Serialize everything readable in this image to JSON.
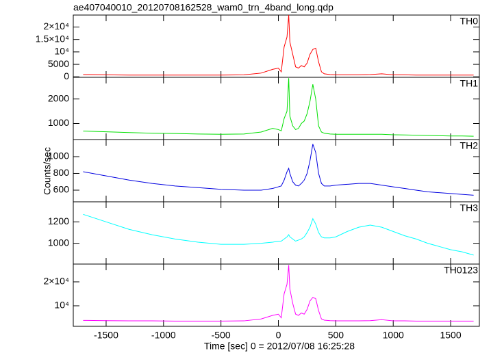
{
  "chart_data": [
    {
      "type": "line",
      "title": "ae407040010_20120708162528_wam0_trn_4band_long.qdp",
      "x": [
        -1700,
        -1500,
        -1300,
        -1100,
        -900,
        -700,
        -500,
        -300,
        -150,
        -50,
        0,
        25,
        50,
        75,
        90,
        100,
        125,
        150,
        175,
        200,
        225,
        250,
        275,
        300,
        325,
        350,
        375,
        400,
        450,
        500,
        600,
        700,
        800,
        900,
        1000,
        1100,
        1200,
        1300,
        1400,
        1500,
        1600,
        1700
      ],
      "series": [
        {
          "name": "TH0",
          "color": "#ff0000",
          "values": [
            900,
            800,
            700,
            700,
            700,
            700,
            700,
            800,
            1500,
            3000,
            3500,
            2000,
            12000,
            16000,
            24800,
            14000,
            9000,
            4000,
            3500,
            4500,
            4000,
            5500,
            9000,
            11000,
            11500,
            6000,
            2000,
            1200,
            900,
            800,
            800,
            800,
            900,
            1200,
            800,
            800,
            700,
            700,
            700,
            700,
            700,
            700
          ]
        }
      ],
      "xlim": [
        -1786,
        1750
      ],
      "ylim": [
        -200,
        24800
      ],
      "yticks": [
        0,
        5000,
        {
          "value": 10000,
          "label": "10⁴"
        },
        {
          "value": 15000,
          "label": "1.5×10⁴"
        },
        {
          "value": 20000,
          "label": "2×10⁴"
        }
      ]
    },
    {
      "type": "line",
      "x": [
        -1700,
        -1500,
        -1300,
        -1100,
        -900,
        -700,
        -500,
        -300,
        -150,
        -50,
        0,
        25,
        50,
        75,
        90,
        100,
        125,
        150,
        175,
        200,
        225,
        250,
        275,
        300,
        325,
        350,
        375,
        400,
        450,
        500,
        600,
        700,
        800,
        900,
        1000,
        1100,
        1200,
        1300,
        1400,
        1500,
        1600,
        1700
      ],
      "series": [
        {
          "name": "TH1",
          "color": "#00e000",
          "values": [
            690,
            660,
            630,
            600,
            590,
            570,
            560,
            570,
            650,
            800,
            750,
            700,
            1200,
            1500,
            2850,
            1300,
            900,
            750,
            800,
            1000,
            1100,
            1400,
            1900,
            2600,
            2000,
            900,
            650,
            600,
            570,
            560,
            560,
            560,
            560,
            560,
            540,
            530,
            520,
            510,
            500,
            490,
            490,
            480
          ]
        }
      ],
      "xlim": [
        -1786,
        1750
      ],
      "ylim": [
        343,
        2886
      ],
      "yticks": [
        1000,
        2000
      ]
    },
    {
      "type": "line",
      "ylabel": "Counts/sec",
      "x": [
        -1700,
        -1500,
        -1300,
        -1100,
        -900,
        -700,
        -500,
        -300,
        -150,
        -50,
        0,
        25,
        50,
        75,
        90,
        100,
        125,
        150,
        175,
        200,
        225,
        250,
        275,
        300,
        325,
        350,
        375,
        400,
        450,
        500,
        600,
        700,
        800,
        900,
        1000,
        1100,
        1200,
        1300,
        1400,
        1500,
        1600,
        1700
      ],
      "series": [
        {
          "name": "TH2",
          "color": "#0000e0",
          "values": [
            820,
            770,
            720,
            680,
            650,
            630,
            610,
            600,
            600,
            620,
            640,
            650,
            720,
            820,
            860,
            800,
            700,
            660,
            650,
            680,
            720,
            800,
            950,
            1150,
            1050,
            800,
            680,
            650,
            650,
            660,
            670,
            680,
            680,
            660,
            640,
            620,
            600,
            580,
            570,
            560,
            550,
            540
          ]
        }
      ],
      "xlim": [
        -1786,
        1750
      ],
      "ylim": [
        461,
        1204
      ],
      "yticks": [
        600,
        800,
        1000
      ]
    },
    {
      "type": "line",
      "x": [
        -1700,
        -1500,
        -1300,
        -1100,
        -900,
        -700,
        -500,
        -300,
        -150,
        -50,
        0,
        25,
        50,
        75,
        90,
        100,
        125,
        150,
        175,
        200,
        225,
        250,
        275,
        300,
        325,
        350,
        375,
        400,
        450,
        500,
        600,
        700,
        800,
        900,
        1000,
        1100,
        1200,
        1300,
        1400,
        1500,
        1600,
        1700
      ],
      "series": [
        {
          "name": "TH3",
          "color": "#00ffff",
          "values": [
            1270,
            1200,
            1130,
            1080,
            1040,
            1010,
            990,
            990,
            1000,
            1010,
            1020,
            1020,
            1040,
            1060,
            1080,
            1060,
            1040,
            1020,
            1030,
            1040,
            1060,
            1100,
            1150,
            1230,
            1180,
            1100,
            1060,
            1050,
            1050,
            1060,
            1110,
            1150,
            1170,
            1150,
            1110,
            1070,
            1040,
            1000,
            970,
            940,
            920,
            890
          ]
        }
      ],
      "xlim": [
        -1786,
        1750
      ],
      "ylim": [
        806,
        1387
      ],
      "yticks": [
        1000,
        1200
      ]
    },
    {
      "type": "line",
      "xlabel": "Time [sec] 0 = 2012/07/08 16:25:28",
      "x": [
        -1700,
        -1500,
        -1300,
        -1100,
        -900,
        -700,
        -500,
        -300,
        -150,
        -50,
        0,
        25,
        50,
        75,
        90,
        100,
        125,
        150,
        175,
        200,
        225,
        250,
        275,
        300,
        325,
        350,
        375,
        400,
        450,
        500,
        600,
        700,
        800,
        900,
        1000,
        1100,
        1200,
        1300,
        1400,
        1500,
        1600,
        1700
      ],
      "series": [
        {
          "name": "TH0123",
          "color": "#ff00ff",
          "values": [
            3900,
            3800,
            3700,
            3700,
            3600,
            3600,
            3600,
            3700,
            4500,
            6000,
            6500,
            5000,
            15000,
            19000,
            27000,
            17000,
            11000,
            6500,
            6000,
            7000,
            6500,
            8500,
            12000,
            13500,
            13000,
            8000,
            4500,
            4000,
            3800,
            3700,
            3700,
            3700,
            3800,
            4200,
            3700,
            3700,
            3600,
            3600,
            3600,
            3600,
            3600,
            3600
          ]
        }
      ],
      "xlim": [
        -1786,
        1750
      ],
      "ylim": [
        1430,
        27430
      ],
      "yticks": [
        {
          "value": 10000,
          "label": "10⁴"
        },
        {
          "value": 20000,
          "label": "2×10⁴"
        }
      ],
      "xticks": [
        -1500,
        -1000,
        -500,
        0,
        500,
        1000,
        1500
      ]
    }
  ]
}
